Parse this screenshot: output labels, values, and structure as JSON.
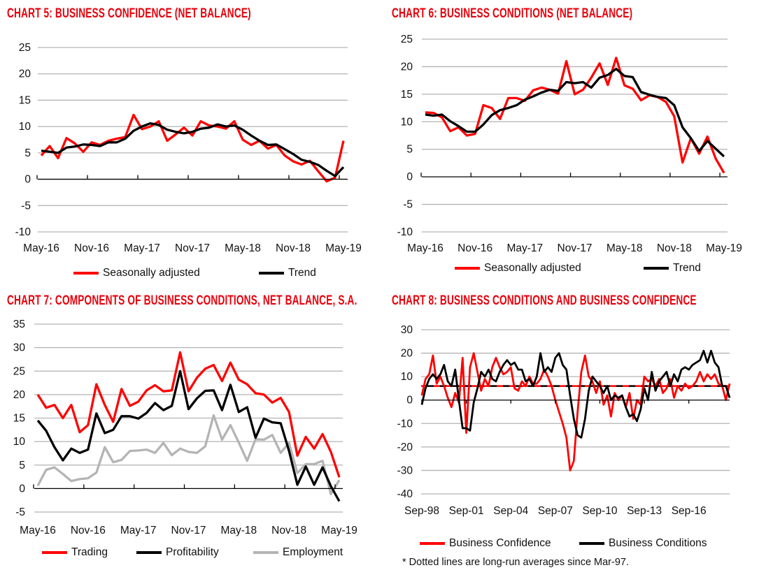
{
  "chart_data": [
    {
      "type": "line",
      "title": "CHART 5: BUSINESS CONFIDENCE (NET BALANCE)",
      "ylim": [
        -10,
        25
      ],
      "ystep": 5,
      "grid": true,
      "x_tick_labels": [
        "May-16",
        "Nov-16",
        "May-17",
        "Nov-17",
        "May-18",
        "Nov-18",
        "May-19"
      ],
      "series": [
        {
          "name": "Seasonally adjusted",
          "color": "#ff0000",
          "values": [
            4.5,
            6.3,
            4,
            7.8,
            6.8,
            5.2,
            7,
            6.5,
            7.3,
            7.7,
            8,
            12.2,
            9.5,
            10,
            11,
            7.3,
            8.5,
            9.8,
            8.3,
            11,
            10.2,
            10,
            9.6,
            11,
            7.5,
            6.5,
            7.3,
            5.8,
            6.5,
            4.5,
            3.4,
            2.8,
            3.5,
            1.5,
            -0.4,
            0.3,
            7.3
          ]
        },
        {
          "name": "Trend",
          "color": "#000000",
          "values": [
            5.4,
            5.2,
            5,
            6,
            6.2,
            6.6,
            6.5,
            6.3,
            7,
            7,
            7.7,
            9.2,
            10,
            10.6,
            10.3,
            9.4,
            9,
            8.7,
            9,
            9.6,
            9.8,
            10.4,
            10,
            10.2,
            9.4,
            8.3,
            7.3,
            6.5,
            6.6,
            5.7,
            4.8,
            3.7,
            3.3,
            2.7,
            1.6,
            0.6,
            2.3
          ]
        }
      ],
      "legend": "bottom"
    },
    {
      "type": "line",
      "title": "CHART 6: BUSINESS CONDITIONS (NET BALANCE)",
      "ylim": [
        -10,
        25
      ],
      "ystep": 5,
      "grid": true,
      "x_tick_labels": [
        "May-16",
        "Nov-16",
        "May-17",
        "Nov-17",
        "May-18",
        "Nov-18",
        "May-19"
      ],
      "series": [
        {
          "name": "Seasonally adjusted",
          "color": "#ff0000",
          "values": [
            11.7,
            11.6,
            10.8,
            8.3,
            9,
            7.5,
            7.8,
            13,
            12.5,
            10.5,
            14.3,
            14.3,
            13.8,
            15.7,
            16.2,
            15.8,
            15.1,
            21,
            15,
            15.8,
            18,
            20.6,
            16.7,
            21.6,
            16.6,
            16,
            13.9,
            14.8,
            14.5,
            13.6,
            11,
            2.6,
            7,
            4.2,
            7.3,
            3.3,
            0.7
          ]
        },
        {
          "name": "Trend",
          "color": "#000000",
          "values": [
            11.3,
            11.1,
            11.3,
            10.1,
            9.2,
            8.2,
            8.2,
            9.5,
            11.2,
            12.1,
            12.5,
            13,
            14,
            14.6,
            15.3,
            15.8,
            15.6,
            17.2,
            17,
            17.2,
            16.2,
            18,
            18.5,
            19.6,
            18.3,
            18.1,
            15.4,
            14.9,
            14.5,
            14.3,
            13,
            9,
            7,
            4.7,
            6.5,
            5.1,
            3.7
          ]
        }
      ],
      "legend": "bottom"
    },
    {
      "type": "line",
      "title": "CHART 7: COMPONENTS OF BUSINESS CONDITIONS, NET BALANCE, S.A.",
      "ylim": [
        -5,
        35
      ],
      "ystep": 5,
      "grid": true,
      "x_tick_labels": [
        "May-16",
        "Nov-16",
        "May-17",
        "Nov-17",
        "May-18",
        "Nov-18",
        "May-19"
      ],
      "series": [
        {
          "name": "Trading",
          "color": "#ff0000",
          "values": [
            20,
            17.2,
            17.8,
            15,
            17.8,
            12,
            13.5,
            22.2,
            17.8,
            14.2,
            21.2,
            17.6,
            18.5,
            20.9,
            22,
            20.7,
            20.9,
            29,
            20.7,
            23.6,
            25.5,
            26.3,
            22.9,
            26.8,
            23.2,
            22.2,
            20.3,
            20,
            18.3,
            19.3,
            16.3,
            7,
            11,
            8.5,
            11.6,
            7.8,
            2.4
          ]
        },
        {
          "name": "Profitability",
          "color": "#000000",
          "values": [
            14.5,
            12.3,
            8.8,
            6,
            8.5,
            7.6,
            8.3,
            16,
            11.8,
            12.5,
            15.4,
            15.4,
            14.9,
            16.1,
            18.2,
            16.7,
            17.6,
            25,
            16.9,
            19.2,
            20.8,
            20.9,
            16.7,
            22.1,
            16.3,
            17.3,
            10.8,
            14.9,
            14.1,
            13.9,
            8,
            0.8,
            4.7,
            0.8,
            4.5,
            0.5,
            -2.7
          ]
        },
        {
          "name": "Employment",
          "color": "#b4b4b4",
          "values": [
            0.6,
            4,
            4.5,
            3.1,
            1.6,
            2,
            2.2,
            3.4,
            8.8,
            5.6,
            6.1,
            8,
            8.1,
            8.3,
            7.6,
            9.7,
            7.1,
            8.5,
            7.8,
            7.6,
            9,
            15.6,
            10.4,
            13.5,
            9.8,
            5.9,
            10.5,
            10.4,
            11.4,
            7.6,
            9.7,
            3.3,
            5.2,
            5.2,
            5.9,
            -1.2,
            1.8
          ]
        }
      ],
      "legend": "bottom"
    },
    {
      "type": "line",
      "title": "CHART 8: BUSINESS CONDITIONS AND BUSINESS CONFIDENCE",
      "ylim": [
        -40,
        30
      ],
      "ystep": 10,
      "grid": true,
      "x_tick_labels": [
        "Sep-98",
        "Sep-01",
        "Sep-04",
        "Sep-07",
        "Sep-10",
        "Sep-13",
        "Sep-16"
      ],
      "series": [
        {
          "name": "Business Confidence",
          "color": "#ff0000",
          "long_run_average": 6,
          "values": [
            2,
            9,
            11,
            19,
            7,
            10,
            6,
            1,
            -3,
            3,
            -1,
            18,
            -14,
            14,
            20,
            12,
            4,
            9,
            6,
            14,
            18,
            14,
            11,
            12,
            14,
            5,
            4,
            8,
            6,
            10,
            7,
            7,
            9,
            13,
            10,
            6,
            0,
            -5,
            -10,
            -16,
            -30,
            -26,
            -5,
            12,
            19,
            10,
            8,
            3,
            8,
            -2,
            2,
            -7,
            3,
            0,
            2,
            -3,
            3,
            -8,
            0,
            -2,
            10,
            8,
            9,
            6,
            9,
            3,
            5,
            9,
            1,
            6,
            4,
            7,
            5,
            6,
            8,
            12,
            8,
            11,
            9,
            11,
            7,
            6,
            0,
            7
          ]
        },
        {
          "name": "Business Conditions",
          "color": "#000000",
          "long_run_average": 6,
          "values": [
            -2,
            5,
            9,
            11,
            9,
            11,
            15,
            8,
            6,
            13,
            0,
            -12,
            -12,
            -13,
            -1,
            5,
            12,
            10,
            13,
            9,
            8,
            12,
            15,
            17,
            15,
            16,
            13,
            13,
            8,
            9,
            6,
            10,
            20,
            12,
            14,
            12,
            18,
            20,
            15,
            13,
            2,
            -8,
            -15,
            -16,
            -8,
            4,
            10,
            8,
            6,
            3,
            6,
            0,
            2,
            1,
            2,
            -3,
            -7,
            -6,
            -9,
            -4,
            5,
            0,
            12,
            4,
            8,
            10,
            12,
            6,
            11,
            8,
            13,
            14,
            13,
            15,
            16,
            17,
            21,
            16,
            21,
            16,
            14,
            6,
            6,
            1
          ]
        }
      ],
      "legend": "bottom",
      "footnote": "* Dotted lines are long-run  averages since Mar-97."
    }
  ]
}
